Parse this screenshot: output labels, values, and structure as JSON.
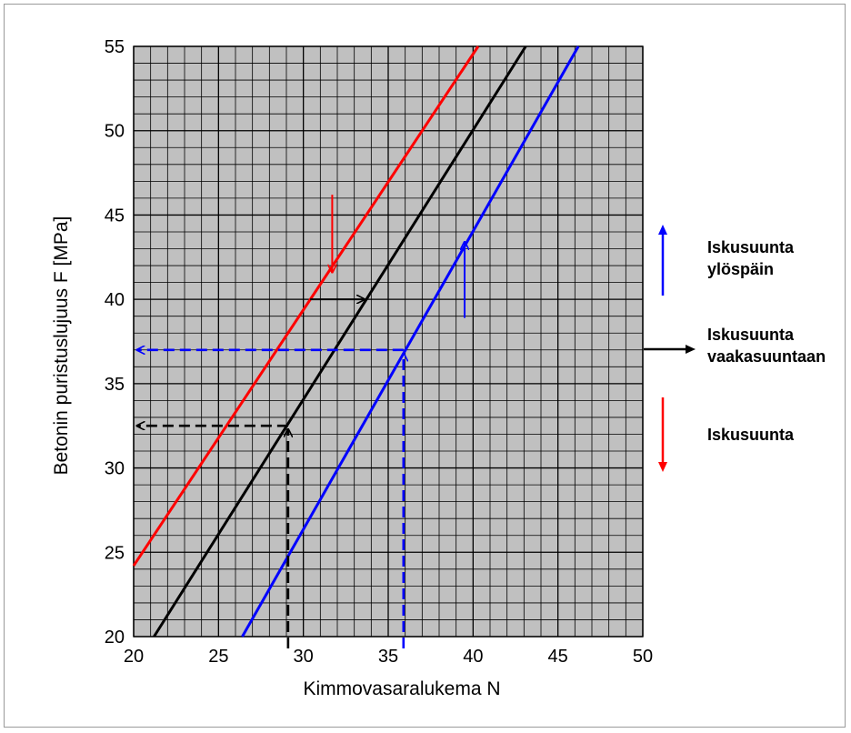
{
  "chart_data": {
    "type": "line",
    "title": "",
    "xlabel": "Kimmovasaralukema N",
    "ylabel": "Betonin puristuslujuus F [MPa]",
    "xlim": [
      20,
      50
    ],
    "ylim": [
      20,
      55
    ],
    "x_ticks": [
      20,
      25,
      30,
      35,
      40,
      45,
      50
    ],
    "y_ticks": [
      20,
      25,
      30,
      35,
      40,
      45,
      50,
      55
    ],
    "minor_x_step": 1,
    "minor_y_step": 1,
    "grid": true,
    "plot_background": "#c0c0c0",
    "series": [
      {
        "color": "#ff0000",
        "x": [
          20,
          40.3
        ],
        "y": [
          24.2,
          55
        ]
      },
      {
        "color": "#000000",
        "x": [
          21.2,
          43.1
        ],
        "y": [
          20,
          55
        ]
      },
      {
        "color": "#0000ff",
        "x": [
          26.4,
          46.2
        ],
        "y": [
          20,
          55
        ]
      }
    ],
    "annotations": [
      {
        "type": "arrow",
        "color": "#ff0000",
        "dashed": false,
        "from": [
          31.7,
          46.2
        ],
        "to": [
          31.7,
          41.6
        ]
      },
      {
        "type": "arrow",
        "color": "#000000",
        "dashed": false,
        "from": [
          30.4,
          40
        ],
        "to": [
          33.6,
          40
        ]
      },
      {
        "type": "arrow",
        "color": "#0000ff",
        "dashed": false,
        "from": [
          39.5,
          38.9
        ],
        "to": [
          39.5,
          43.4
        ]
      },
      {
        "type": "arrow",
        "color": "#0000ff",
        "dashed": true,
        "from": [
          35.9,
          19.3
        ],
        "to": [
          35.9,
          36.8
        ]
      },
      {
        "type": "arrow",
        "color": "#0000ff",
        "dashed": true,
        "from": [
          35.9,
          37
        ],
        "to": [
          20.2,
          37
        ]
      },
      {
        "type": "arrow",
        "color": "#000000",
        "dashed": true,
        "from": [
          29.1,
          19.3
        ],
        "to": [
          29.1,
          32.3
        ]
      },
      {
        "type": "arrow",
        "color": "#000000",
        "dashed": true,
        "from": [
          29.1,
          32.5
        ],
        "to": [
          20.2,
          32.5
        ]
      }
    ],
    "legend_placement": "right",
    "legend": [
      {
        "color": "#0000ff",
        "direction": "up",
        "lines": [
          "Iskusuunta",
          "ylöspäin"
        ]
      },
      {
        "color": "#000000",
        "direction": "right",
        "lines": [
          "Iskusuunta",
          "vaakasuuntaan"
        ]
      },
      {
        "color": "#ff0000",
        "direction": "down",
        "lines": [
          "Iskusuunta"
        ]
      }
    ]
  }
}
